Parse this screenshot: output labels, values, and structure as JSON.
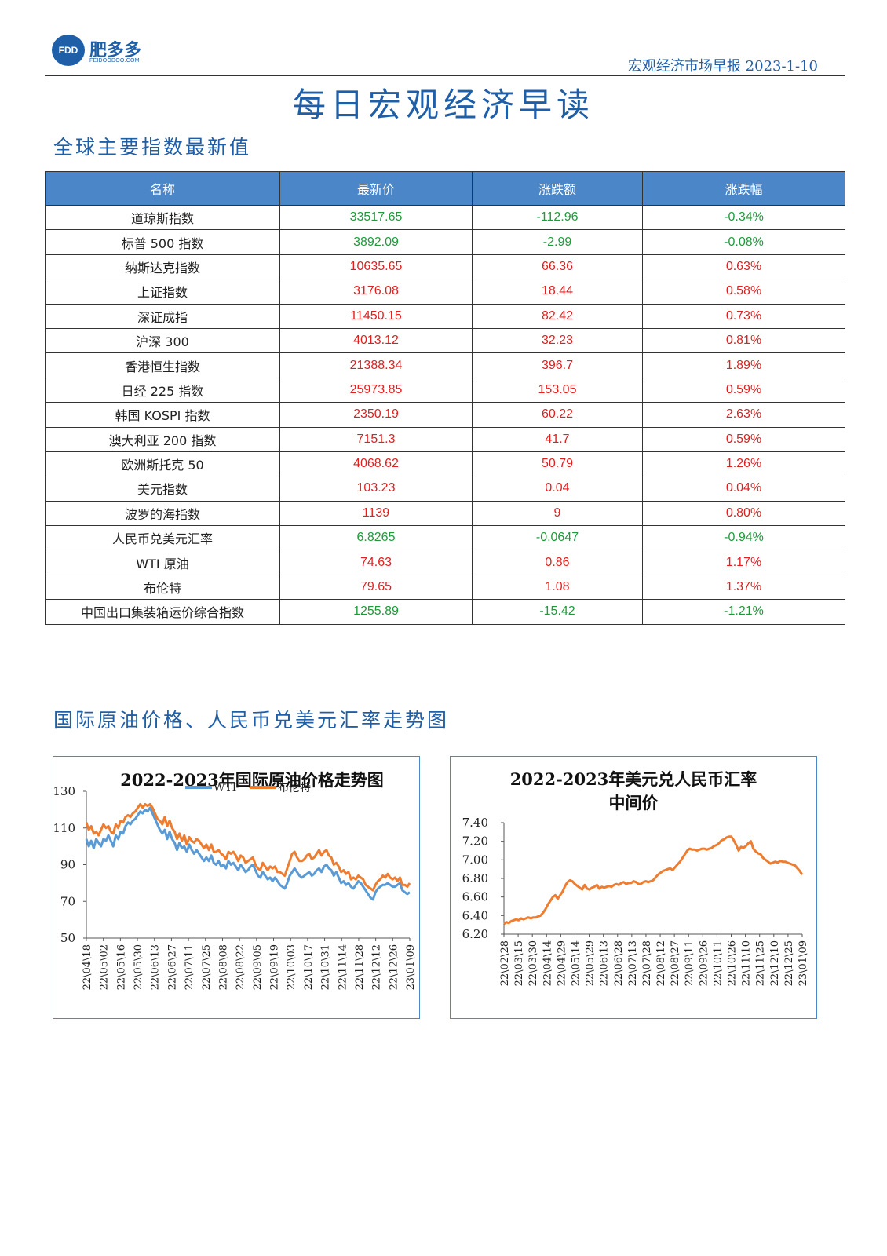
{
  "header": {
    "logo_mark": "FDD",
    "logo_name": "肥多多",
    "logo_url": "FEIDOODOO.COM",
    "report_title": "宏观经济市场早报 2023-1-10"
  },
  "main_title": "每日宏观经济早读",
  "index_section": {
    "title": "全球主要指数最新值",
    "columns": [
      "名称",
      "最新价",
      "涨跌额",
      "涨跌幅"
    ],
    "rows": [
      {
        "name": "道琼斯指数",
        "price": "33517.65",
        "change": "-112.96",
        "pct": "-0.34%",
        "dir": "down"
      },
      {
        "name": "标普 500 指数",
        "price": "3892.09",
        "change": "-2.99",
        "pct": "-0.08%",
        "dir": "down"
      },
      {
        "name": "纳斯达克指数",
        "price": "10635.65",
        "change": "66.36",
        "pct": "0.63%",
        "dir": "up"
      },
      {
        "name": "上证指数",
        "price": "3176.08",
        "change": "18.44",
        "pct": "0.58%",
        "dir": "up"
      },
      {
        "name": "深证成指",
        "price": "11450.15",
        "change": "82.42",
        "pct": "0.73%",
        "dir": "up"
      },
      {
        "name": "沪深 300",
        "price": "4013.12",
        "change": "32.23",
        "pct": "0.81%",
        "dir": "up"
      },
      {
        "name": "香港恒生指数",
        "price": "21388.34",
        "change": "396.7",
        "pct": "1.89%",
        "dir": "up"
      },
      {
        "name": "日经 225 指数",
        "price": "25973.85",
        "change": "153.05",
        "pct": "0.59%",
        "dir": "up"
      },
      {
        "name": "韩国 KOSPI 指数",
        "price": "2350.19",
        "change": "60.22",
        "pct": "2.63%",
        "dir": "up"
      },
      {
        "name": "澳大利亚 200 指数",
        "price": "7151.3",
        "change": "41.7",
        "pct": "0.59%",
        "dir": "up"
      },
      {
        "name": "欧洲斯托克 50",
        "price": "4068.62",
        "change": "50.79",
        "pct": "1.26%",
        "dir": "up"
      },
      {
        "name": "美元指数",
        "price": "103.23",
        "change": "0.04",
        "pct": "0.04%",
        "dir": "up"
      },
      {
        "name": "波罗的海指数",
        "price": "1139",
        "change": "9",
        "pct": "0.80%",
        "dir": "up"
      },
      {
        "name": "人民币兑美元汇率",
        "price": "6.8265",
        "change": "-0.0647",
        "pct": "-0.94%",
        "dir": "down"
      },
      {
        "name": "WTI 原油",
        "price": "74.63",
        "change": "0.86",
        "pct": "1.17%",
        "dir": "up"
      },
      {
        "name": "布伦特",
        "price": "79.65",
        "change": "1.08",
        "pct": "1.37%",
        "dir": "up"
      },
      {
        "name": "中国出口集装箱运价综合指数",
        "price": "1255.89",
        "change": "-15.42",
        "pct": "-1.21%",
        "dir": "down"
      }
    ]
  },
  "colors": {
    "accent": "#1f5fa8",
    "header_fill": "#4a86c8",
    "up": "#e02020",
    "down": "#1e9a3a",
    "wti": "#5b9bd5",
    "brent": "#ed7d31"
  },
  "chart_section_title": "国际原油价格、人民币兑美元汇率走势图",
  "chart_data": [
    {
      "type": "line",
      "title": "2022-2023年国际原油价格走势图",
      "legend_position": "top",
      "ylim": [
        50,
        130
      ],
      "yticks": [
        50,
        70,
        90,
        110,
        130
      ],
      "tick_labels": [
        "22\\04\\18",
        "22\\05\\02",
        "22\\05\\16",
        "22\\05\\30",
        "22\\06\\13",
        "22\\06\\27",
        "22\\07\\11",
        "22\\07\\25",
        "22\\08\\08",
        "22\\08\\22",
        "22\\09\\05",
        "22\\09\\19",
        "22\\10\\03",
        "22\\10\\17",
        "22\\10\\31",
        "22\\11\\14",
        "22\\11\\28",
        "22\\12\\12",
        "22\\12\\26",
        "23\\01\\09"
      ],
      "series": [
        {
          "name": "WTI",
          "color": "#5b9bd5",
          "values": [
            104,
            100,
            103,
            99,
            104,
            102,
            100,
            104,
            103,
            106,
            103,
            100,
            106,
            104,
            108,
            107,
            111,
            113,
            112,
            114,
            115,
            117,
            119,
            118,
            120,
            119,
            121,
            118,
            115,
            112,
            109,
            107,
            109,
            104,
            108,
            104,
            102,
            98,
            102,
            99,
            100,
            97,
            101,
            98,
            96,
            98,
            96,
            94,
            92,
            94,
            92,
            95,
            91,
            90,
            92,
            89,
            90,
            88,
            92,
            90,
            91,
            89,
            87,
            90,
            88,
            86,
            87,
            89,
            90,
            87,
            84,
            83,
            86,
            84,
            82,
            83,
            81,
            83,
            81,
            79,
            78,
            77,
            80,
            84,
            86,
            88,
            86,
            84,
            83,
            84,
            85,
            86,
            84,
            85,
            87,
            88,
            86,
            89,
            90,
            88,
            87,
            84,
            86,
            83,
            80,
            81,
            79,
            80,
            78,
            77,
            79,
            81,
            80,
            78,
            76,
            74,
            72,
            71,
            75,
            77,
            78,
            79,
            79,
            80,
            79,
            78,
            78,
            79,
            80,
            76,
            75,
            74,
            75
          ]
        },
        {
          "name": "布伦特",
          "color": "#ed7d31",
          "values": [
            113,
            109,
            111,
            107,
            108,
            106,
            109,
            112,
            110,
            111,
            108,
            107,
            112,
            110,
            114,
            113,
            116,
            117,
            116,
            118,
            119,
            121,
            123,
            121,
            123,
            122,
            123,
            121,
            118,
            115,
            114,
            112,
            116,
            111,
            114,
            110,
            108,
            104,
            107,
            103,
            106,
            101,
            105,
            103,
            102,
            104,
            103,
            101,
            99,
            101,
            98,
            101,
            97,
            97,
            98,
            96,
            95,
            93,
            97,
            96,
            97,
            95,
            92,
            95,
            94,
            91,
            92,
            93,
            94,
            90,
            88,
            87,
            91,
            89,
            87,
            89,
            88,
            89,
            86,
            86,
            85,
            84,
            88,
            92,
            96,
            97,
            94,
            92,
            92,
            93,
            95,
            96,
            93,
            94,
            96,
            98,
            95,
            97,
            98,
            95,
            94,
            90,
            91,
            89,
            86,
            87,
            85,
            86,
            82,
            83,
            82,
            84,
            83,
            82,
            79,
            78,
            77,
            76,
            79,
            81,
            82,
            84,
            83,
            85,
            83,
            82,
            83,
            81,
            83,
            79,
            79,
            78,
            80
          ]
        }
      ]
    },
    {
      "type": "line",
      "title": "2022-2023年美元兑人民币汇率中间价",
      "ylim": [
        6.2,
        7.4
      ],
      "yticks": [
        "6.20",
        "6.40",
        "6.60",
        "6.80",
        "7.00",
        "7.20",
        "7.40"
      ],
      "tick_labels": [
        "22\\02\\28",
        "22\\03\\15",
        "22\\03\\30",
        "22\\04\\14",
        "22\\04\\29",
        "22\\05\\14",
        "22\\05\\29",
        "22\\06\\13",
        "22\\06\\28",
        "22\\07\\13",
        "22\\07\\28",
        "22\\08\\12",
        "22\\08\\27",
        "22\\09\\11",
        "22\\09\\26",
        "22\\10\\11",
        "22\\10\\26",
        "22\\11\\10",
        "22\\11\\25",
        "22\\12\\10",
        "22\\12\\25",
        "23\\01\\09"
      ],
      "series": [
        {
          "name": "",
          "color": "#ed7d31",
          "values": [
            6.31,
            6.33,
            6.32,
            6.34,
            6.35,
            6.36,
            6.35,
            6.37,
            6.36,
            6.37,
            6.38,
            6.37,
            6.38,
            6.38,
            6.39,
            6.4,
            6.43,
            6.47,
            6.52,
            6.56,
            6.6,
            6.62,
            6.58,
            6.62,
            6.66,
            6.72,
            6.76,
            6.78,
            6.77,
            6.74,
            6.72,
            6.7,
            6.68,
            6.73,
            6.69,
            6.68,
            6.7,
            6.71,
            6.73,
            6.69,
            6.71,
            6.7,
            6.71,
            6.72,
            6.71,
            6.73,
            6.74,
            6.73,
            6.75,
            6.76,
            6.74,
            6.75,
            6.75,
            6.77,
            6.76,
            6.74,
            6.74,
            6.76,
            6.77,
            6.76,
            6.77,
            6.78,
            6.81,
            6.84,
            6.86,
            6.88,
            6.89,
            6.9,
            6.91,
            6.89,
            6.92,
            6.95,
            6.98,
            7.02,
            7.06,
            7.1,
            7.12,
            7.11,
            7.11,
            7.1,
            7.11,
            7.12,
            7.12,
            7.11,
            7.12,
            7.13,
            7.15,
            7.16,
            7.18,
            7.21,
            7.22,
            7.24,
            7.25,
            7.25,
            7.21,
            7.16,
            7.1,
            7.14,
            7.13,
            7.15,
            7.18,
            7.2,
            7.12,
            7.09,
            7.07,
            7.06,
            7.02,
            7.0,
            6.98,
            6.96,
            6.97,
            6.98,
            6.97,
            6.99,
            6.98,
            6.98,
            6.97,
            6.96,
            6.95,
            6.94,
            6.91,
            6.88,
            6.84
          ]
        }
      ]
    }
  ]
}
